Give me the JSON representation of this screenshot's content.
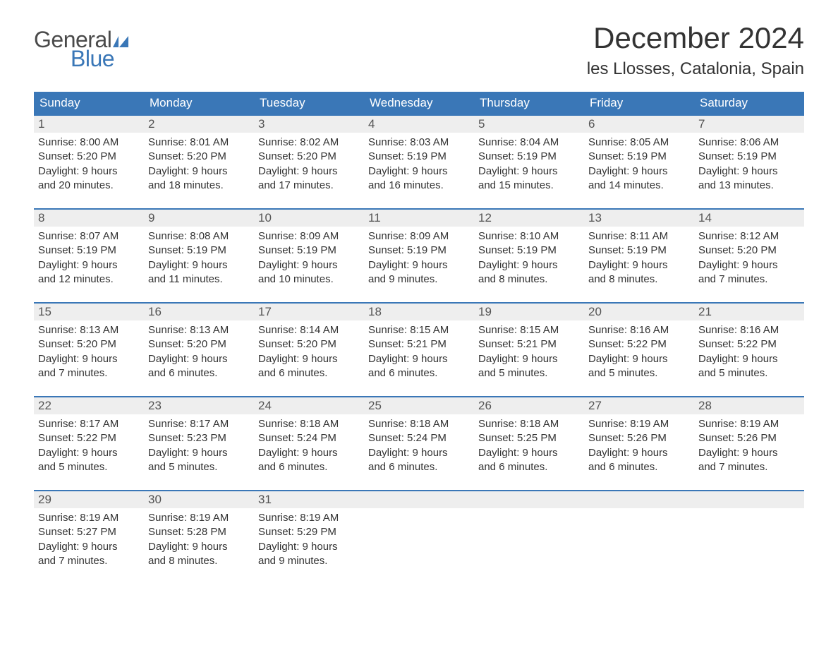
{
  "brand": {
    "general": "General",
    "blue": "Blue",
    "flag_color": "#3a77b7"
  },
  "title": "December 2024",
  "location": "les Llosses, Catalonia, Spain",
  "colors": {
    "header_bg": "#3a77b7",
    "header_text": "#ffffff",
    "daynum_bg": "#eeeeee",
    "body_text": "#333333",
    "week_border": "#3a77b7",
    "page_bg": "#ffffff"
  },
  "typography": {
    "title_fontsize": 42,
    "location_fontsize": 24,
    "weekday_fontsize": 17,
    "daynum_fontsize": 17,
    "body_fontsize": 15
  },
  "layout": {
    "columns": 7,
    "rows": 5
  },
  "weekdays": [
    "Sunday",
    "Monday",
    "Tuesday",
    "Wednesday",
    "Thursday",
    "Friday",
    "Saturday"
  ],
  "weeks": [
    [
      {
        "n": "1",
        "sunrise": "Sunrise: 8:00 AM",
        "sunset": "Sunset: 5:20 PM",
        "dl1": "Daylight: 9 hours",
        "dl2": "and 20 minutes."
      },
      {
        "n": "2",
        "sunrise": "Sunrise: 8:01 AM",
        "sunset": "Sunset: 5:20 PM",
        "dl1": "Daylight: 9 hours",
        "dl2": "and 18 minutes."
      },
      {
        "n": "3",
        "sunrise": "Sunrise: 8:02 AM",
        "sunset": "Sunset: 5:20 PM",
        "dl1": "Daylight: 9 hours",
        "dl2": "and 17 minutes."
      },
      {
        "n": "4",
        "sunrise": "Sunrise: 8:03 AM",
        "sunset": "Sunset: 5:19 PM",
        "dl1": "Daylight: 9 hours",
        "dl2": "and 16 minutes."
      },
      {
        "n": "5",
        "sunrise": "Sunrise: 8:04 AM",
        "sunset": "Sunset: 5:19 PM",
        "dl1": "Daylight: 9 hours",
        "dl2": "and 15 minutes."
      },
      {
        "n": "6",
        "sunrise": "Sunrise: 8:05 AM",
        "sunset": "Sunset: 5:19 PM",
        "dl1": "Daylight: 9 hours",
        "dl2": "and 14 minutes."
      },
      {
        "n": "7",
        "sunrise": "Sunrise: 8:06 AM",
        "sunset": "Sunset: 5:19 PM",
        "dl1": "Daylight: 9 hours",
        "dl2": "and 13 minutes."
      }
    ],
    [
      {
        "n": "8",
        "sunrise": "Sunrise: 8:07 AM",
        "sunset": "Sunset: 5:19 PM",
        "dl1": "Daylight: 9 hours",
        "dl2": "and 12 minutes."
      },
      {
        "n": "9",
        "sunrise": "Sunrise: 8:08 AM",
        "sunset": "Sunset: 5:19 PM",
        "dl1": "Daylight: 9 hours",
        "dl2": "and 11 minutes."
      },
      {
        "n": "10",
        "sunrise": "Sunrise: 8:09 AM",
        "sunset": "Sunset: 5:19 PM",
        "dl1": "Daylight: 9 hours",
        "dl2": "and 10 minutes."
      },
      {
        "n": "11",
        "sunrise": "Sunrise: 8:09 AM",
        "sunset": "Sunset: 5:19 PM",
        "dl1": "Daylight: 9 hours",
        "dl2": "and 9 minutes."
      },
      {
        "n": "12",
        "sunrise": "Sunrise: 8:10 AM",
        "sunset": "Sunset: 5:19 PM",
        "dl1": "Daylight: 9 hours",
        "dl2": "and 8 minutes."
      },
      {
        "n": "13",
        "sunrise": "Sunrise: 8:11 AM",
        "sunset": "Sunset: 5:19 PM",
        "dl1": "Daylight: 9 hours",
        "dl2": "and 8 minutes."
      },
      {
        "n": "14",
        "sunrise": "Sunrise: 8:12 AM",
        "sunset": "Sunset: 5:20 PM",
        "dl1": "Daylight: 9 hours",
        "dl2": "and 7 minutes."
      }
    ],
    [
      {
        "n": "15",
        "sunrise": "Sunrise: 8:13 AM",
        "sunset": "Sunset: 5:20 PM",
        "dl1": "Daylight: 9 hours",
        "dl2": "and 7 minutes."
      },
      {
        "n": "16",
        "sunrise": "Sunrise: 8:13 AM",
        "sunset": "Sunset: 5:20 PM",
        "dl1": "Daylight: 9 hours",
        "dl2": "and 6 minutes."
      },
      {
        "n": "17",
        "sunrise": "Sunrise: 8:14 AM",
        "sunset": "Sunset: 5:20 PM",
        "dl1": "Daylight: 9 hours",
        "dl2": "and 6 minutes."
      },
      {
        "n": "18",
        "sunrise": "Sunrise: 8:15 AM",
        "sunset": "Sunset: 5:21 PM",
        "dl1": "Daylight: 9 hours",
        "dl2": "and 6 minutes."
      },
      {
        "n": "19",
        "sunrise": "Sunrise: 8:15 AM",
        "sunset": "Sunset: 5:21 PM",
        "dl1": "Daylight: 9 hours",
        "dl2": "and 5 minutes."
      },
      {
        "n": "20",
        "sunrise": "Sunrise: 8:16 AM",
        "sunset": "Sunset: 5:22 PM",
        "dl1": "Daylight: 9 hours",
        "dl2": "and 5 minutes."
      },
      {
        "n": "21",
        "sunrise": "Sunrise: 8:16 AM",
        "sunset": "Sunset: 5:22 PM",
        "dl1": "Daylight: 9 hours",
        "dl2": "and 5 minutes."
      }
    ],
    [
      {
        "n": "22",
        "sunrise": "Sunrise: 8:17 AM",
        "sunset": "Sunset: 5:22 PM",
        "dl1": "Daylight: 9 hours",
        "dl2": "and 5 minutes."
      },
      {
        "n": "23",
        "sunrise": "Sunrise: 8:17 AM",
        "sunset": "Sunset: 5:23 PM",
        "dl1": "Daylight: 9 hours",
        "dl2": "and 5 minutes."
      },
      {
        "n": "24",
        "sunrise": "Sunrise: 8:18 AM",
        "sunset": "Sunset: 5:24 PM",
        "dl1": "Daylight: 9 hours",
        "dl2": "and 6 minutes."
      },
      {
        "n": "25",
        "sunrise": "Sunrise: 8:18 AM",
        "sunset": "Sunset: 5:24 PM",
        "dl1": "Daylight: 9 hours",
        "dl2": "and 6 minutes."
      },
      {
        "n": "26",
        "sunrise": "Sunrise: 8:18 AM",
        "sunset": "Sunset: 5:25 PM",
        "dl1": "Daylight: 9 hours",
        "dl2": "and 6 minutes."
      },
      {
        "n": "27",
        "sunrise": "Sunrise: 8:19 AM",
        "sunset": "Sunset: 5:26 PM",
        "dl1": "Daylight: 9 hours",
        "dl2": "and 6 minutes."
      },
      {
        "n": "28",
        "sunrise": "Sunrise: 8:19 AM",
        "sunset": "Sunset: 5:26 PM",
        "dl1": "Daylight: 9 hours",
        "dl2": "and 7 minutes."
      }
    ],
    [
      {
        "n": "29",
        "sunrise": "Sunrise: 8:19 AM",
        "sunset": "Sunset: 5:27 PM",
        "dl1": "Daylight: 9 hours",
        "dl2": "and 7 minutes."
      },
      {
        "n": "30",
        "sunrise": "Sunrise: 8:19 AM",
        "sunset": "Sunset: 5:28 PM",
        "dl1": "Daylight: 9 hours",
        "dl2": "and 8 minutes."
      },
      {
        "n": "31",
        "sunrise": "Sunrise: 8:19 AM",
        "sunset": "Sunset: 5:29 PM",
        "dl1": "Daylight: 9 hours",
        "dl2": "and 9 minutes."
      },
      null,
      null,
      null,
      null
    ]
  ]
}
